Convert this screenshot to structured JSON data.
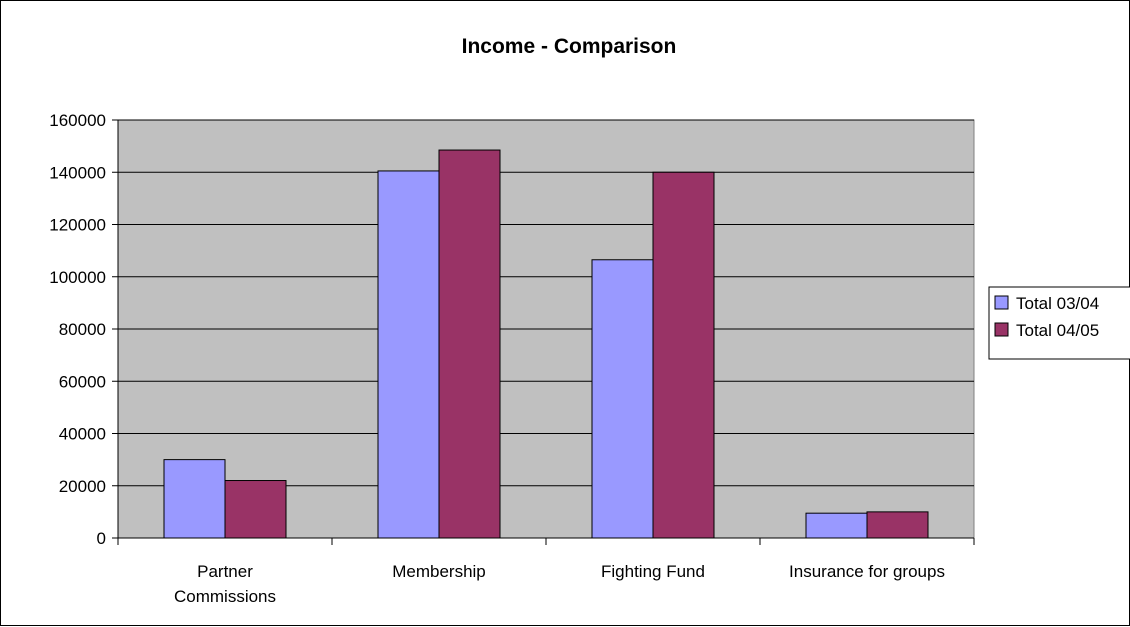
{
  "chart_data": {
    "type": "bar",
    "title": "Income - Comparison",
    "xlabel": "",
    "ylabel": "",
    "categories": [
      [
        "Partner",
        "Commissions"
      ],
      [
        "Membership"
      ],
      [
        "Fighting Fund"
      ],
      [
        "Insurance for groups"
      ]
    ],
    "series": [
      {
        "name": "Total 03/04",
        "color": "#9999ff",
        "values": [
          30000,
          140500,
          106500,
          9500
        ]
      },
      {
        "name": "Total 04/05",
        "color": "#993366",
        "values": [
          22000,
          148500,
          140000,
          10000
        ]
      }
    ],
    "ylim": [
      0,
      160000
    ],
    "yticks": [
      0,
      20000,
      40000,
      60000,
      80000,
      100000,
      120000,
      140000,
      160000
    ],
    "plot_background": "#c0c0c0",
    "grid": true,
    "legend_position": "right"
  }
}
